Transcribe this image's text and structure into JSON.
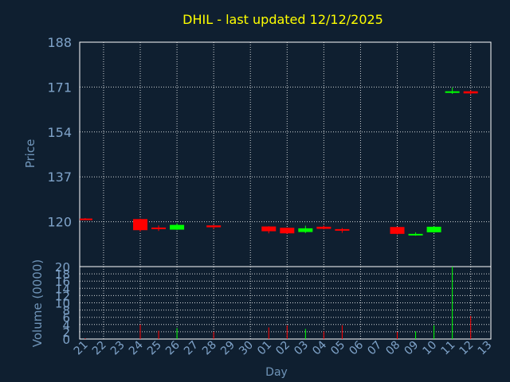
{
  "chart_data": {
    "type": "candlestick",
    "title": "DHIL - last updated 12/12/2025",
    "xlabel": "Day",
    "price_ylabel": "Price",
    "volume_ylabel": "Volume (0000)",
    "price_ylim": [
      103,
      188
    ],
    "price_ticks": [
      "188",
      "171",
      "154",
      "137",
      "120"
    ],
    "volume_ylim": [
      0,
      20
    ],
    "volume_ticks": [
      "20",
      "18",
      "16",
      "14",
      "12",
      "10",
      "8",
      "6",
      "4",
      "2",
      "0"
    ],
    "x_ticks": [
      "21",
      "22",
      "23",
      "24",
      "25",
      "26",
      "27",
      "28",
      "29",
      "30",
      "01",
      "02",
      "03",
      "04",
      "05",
      "06",
      "07",
      "08",
      "09",
      "10",
      "11",
      "12",
      "13"
    ],
    "grid": true,
    "colors": {
      "background": "#0f1f30",
      "up": "#00ff00",
      "down": "#ff0000",
      "grid": "#ffffff",
      "frame": "#ffffff",
      "title": "#ffff00",
      "labels": "#7fa3c9",
      "axis_title": "#6f94b8"
    },
    "candles": [
      {
        "day": "21",
        "open": 121.2,
        "high": 121.4,
        "low": 120.7,
        "close": 120.9,
        "volume": 0.2
      },
      {
        "day": "24",
        "open": 121.0,
        "high": 121.2,
        "low": 116.3,
        "close": 116.8,
        "volume": 4.0
      },
      {
        "day": "25",
        "open": 117.8,
        "high": 118.6,
        "low": 116.5,
        "close": 117.6,
        "volume": 2.3
      },
      {
        "day": "26",
        "open": 117.0,
        "high": 119.4,
        "low": 116.9,
        "close": 118.8,
        "volume": 3.0
      },
      {
        "day": "28",
        "open": 118.6,
        "high": 118.8,
        "low": 117.2,
        "close": 117.9,
        "volume": 2.0
      },
      {
        "day": "01",
        "open": 118.2,
        "high": 118.3,
        "low": 115.6,
        "close": 116.4,
        "volume": 3.2
      },
      {
        "day": "02",
        "open": 117.7,
        "high": 117.8,
        "low": 115.4,
        "close": 115.6,
        "volume": 3.8
      },
      {
        "day": "03",
        "open": 116.1,
        "high": 118.5,
        "low": 115.7,
        "close": 117.5,
        "volume": 2.8
      },
      {
        "day": "04",
        "open": 118.1,
        "high": 118.6,
        "low": 117.1,
        "close": 117.3,
        "volume": 2.1
      },
      {
        "day": "05",
        "open": 117.2,
        "high": 117.6,
        "low": 115.8,
        "close": 116.9,
        "volume": 3.8
      },
      {
        "day": "08",
        "open": 118.0,
        "high": 118.1,
        "low": 115.1,
        "close": 115.4,
        "volume": 2.0
      },
      {
        "day": "09",
        "open": 114.9,
        "high": 116.0,
        "low": 114.7,
        "close": 115.4,
        "volume": 2.1
      },
      {
        "day": "10",
        "open": 116.0,
        "high": 118.3,
        "low": 115.8,
        "close": 118.1,
        "volume": 3.8
      },
      {
        "day": "11",
        "open": 168.8,
        "high": 170.8,
        "low": 168.4,
        "close": 169.4,
        "volume": 20.0
      },
      {
        "day": "12",
        "open": 169.4,
        "high": 169.8,
        "low": 168.2,
        "close": 168.6,
        "volume": 6.4
      }
    ]
  }
}
